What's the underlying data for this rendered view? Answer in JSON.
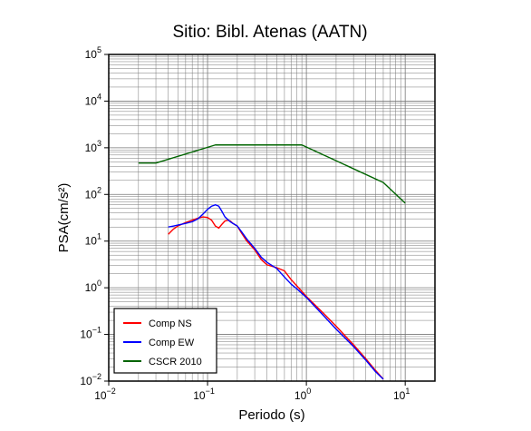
{
  "chart_data": {
    "type": "line",
    "title": "Sitio: Bibl. Atenas (AATN)",
    "xlabel": "Periodo (s)",
    "ylabel": "PSA(cm/s²)",
    "x_scale": "log",
    "y_scale": "log",
    "xlim": [
      0.01,
      20
    ],
    "ylim": [
      0.01,
      100000
    ],
    "grid": true,
    "legend_position": "bottom-left",
    "x_ticks": [
      {
        "base": "10",
        "exp": "−2",
        "value": 0.01
      },
      {
        "base": "10",
        "exp": "−1",
        "value": 0.1
      },
      {
        "base": "10",
        "exp": "0",
        "value": 1
      },
      {
        "base": "10",
        "exp": "1",
        "value": 10
      }
    ],
    "y_ticks": [
      {
        "base": "10",
        "exp": "−2",
        "value": 0.01
      },
      {
        "base": "10",
        "exp": "−1",
        "value": 0.1
      },
      {
        "base": "10",
        "exp": "0",
        "value": 1
      },
      {
        "base": "10",
        "exp": "1",
        "value": 10
      },
      {
        "base": "10",
        "exp": "2",
        "value": 100
      },
      {
        "base": "10",
        "exp": "3",
        "value": 1000
      },
      {
        "base": "10",
        "exp": "4",
        "value": 10000
      },
      {
        "base": "10",
        "exp": "5",
        "value": 100000
      }
    ],
    "series": [
      {
        "name": "Comp NS",
        "color": "#ff0000",
        "x": [
          0.04,
          0.045,
          0.05,
          0.06,
          0.07,
          0.08,
          0.09,
          0.1,
          0.11,
          0.12,
          0.13,
          0.14,
          0.15,
          0.16,
          0.17,
          0.18,
          0.2,
          0.22,
          0.25,
          0.3,
          0.35,
          0.4,
          0.5,
          0.6,
          0.7,
          0.8,
          1,
          1.5,
          2,
          3,
          4,
          5,
          6
        ],
        "y": [
          14,
          18,
          21,
          25,
          28,
          31,
          33,
          32,
          28,
          21,
          19,
          23,
          27,
          28,
          27,
          24,
          21,
          15,
          10,
          6.5,
          4,
          3.1,
          2.7,
          2.3,
          1.5,
          1.1,
          0.65,
          0.28,
          0.15,
          0.06,
          0.03,
          0.017,
          0.011
        ]
      },
      {
        "name": "Comp EW",
        "color": "#0000ff",
        "x": [
          0.04,
          0.045,
          0.05,
          0.06,
          0.07,
          0.08,
          0.09,
          0.1,
          0.11,
          0.12,
          0.13,
          0.14,
          0.15,
          0.16,
          0.17,
          0.18,
          0.2,
          0.22,
          0.25,
          0.3,
          0.35,
          0.4,
          0.5,
          0.6,
          0.7,
          0.8,
          1,
          1.5,
          2,
          3,
          4,
          5,
          6
        ],
        "y": [
          20,
          21,
          22,
          24,
          26,
          30,
          38,
          48,
          56,
          60,
          56,
          43,
          33,
          29,
          26,
          24,
          21,
          16,
          11,
          7,
          4.5,
          3.5,
          2.6,
          1.7,
          1.2,
          0.95,
          0.62,
          0.25,
          0.13,
          0.055,
          0.028,
          0.016,
          0.011
        ]
      },
      {
        "name": "CSCR 2010",
        "color": "#006400",
        "x": [
          0.02,
          0.03,
          0.12,
          0.9,
          6.0,
          10.0
        ],
        "y": [
          470,
          470,
          1150,
          1150,
          180,
          65
        ]
      }
    ]
  }
}
